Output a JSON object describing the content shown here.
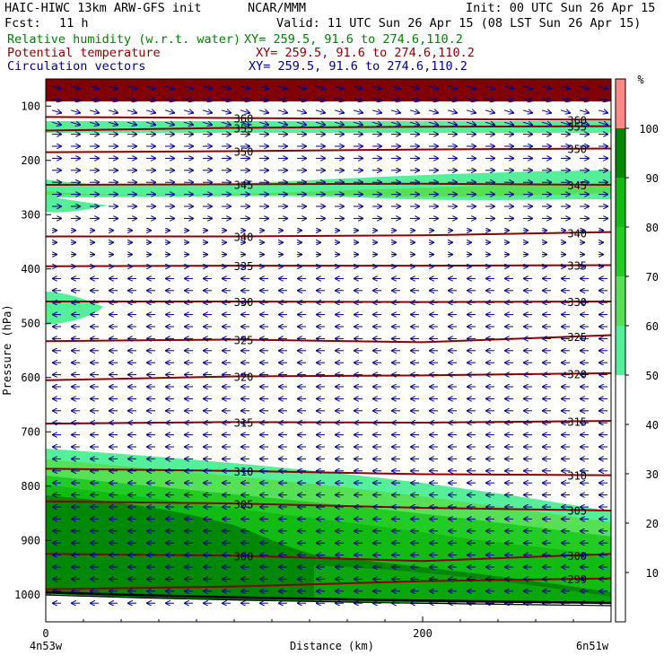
{
  "header": {
    "title": "HAIC-HIWC 13km ARW-GFS init",
    "source": "NCAR/MMM",
    "init": "Init: 00 UTC Sun 26 Apr 15",
    "fcst_label": "Fcst:",
    "fcst_value": "11 h",
    "valid": "Valid: 11 UTC Sun 26 Apr 15 (08 LST Sun 26 Apr 15)",
    "rh_label": "Relative humidity (w.r.t. water)",
    "rh_xy": "XY= 259.5, 91.6 to 274.6,110.2",
    "theta_label": "Potential temperature",
    "theta_xy": "XY= 259.5, 91.6 to 274.6,110.2",
    "vec_label": "Circulation vectors",
    "vec_xy": "XY= 259.5, 91.6 to 274.6,110.2"
  },
  "colors": {
    "rh_field": "#008000",
    "theta_contours": "#8b0000",
    "vectors": "#00008b",
    "top_cap": "#800000"
  },
  "chart_data": {
    "type": "heatmap",
    "xlabel": "Distance (km)",
    "ylabel": "Pressure (hPa)",
    "xlim": [
      0,
      300
    ],
    "ylim": [
      1050,
      50
    ],
    "x_ticks": [
      0,
      200
    ],
    "y_ticks": [
      100,
      200,
      300,
      400,
      500,
      600,
      700,
      800,
      900,
      1000
    ],
    "x_end_labels": {
      "left": "4n53w",
      "right": "6n51w"
    },
    "colorbar": {
      "unit": "%",
      "tick_labels": [
        10,
        20,
        30,
        40,
        50,
        60,
        70,
        80,
        90,
        100
      ],
      "bins": [
        {
          "range": [
            50,
            60
          ],
          "color": "#55ee99"
        },
        {
          "range": [
            60,
            70
          ],
          "color": "#55e055"
        },
        {
          "range": [
            70,
            80
          ],
          "color": "#22cc22"
        },
        {
          "range": [
            80,
            90
          ],
          "color": "#11bb11"
        },
        {
          "range": [
            90,
            100
          ],
          "color": "#008800"
        },
        {
          "range": [
            100,
            110
          ],
          "color": "#ff8888"
        }
      ]
    },
    "theta_contours": [
      {
        "label": "360",
        "pressure": [
          120,
          122,
          124,
          125
        ]
      },
      {
        "label": "355",
        "pressure": [
          145,
          140,
          138,
          137
        ]
      },
      {
        "label": "350",
        "pressure": [
          185,
          183,
          180,
          178
        ]
      },
      {
        "label": "345",
        "pressure": [
          245,
          244,
          243,
          245
        ]
      },
      {
        "label": "340",
        "pressure": [
          340,
          340,
          338,
          332
        ]
      },
      {
        "label": "335",
        "pressure": [
          395,
          394,
          394,
          393
        ]
      },
      {
        "label": "330",
        "pressure": [
          460,
          460,
          461,
          460
        ]
      },
      {
        "label": "325",
        "pressure": [
          533,
          530,
          535,
          522
        ]
      },
      {
        "label": "320",
        "pressure": [
          605,
          598,
          596,
          592
        ]
      },
      {
        "label": "315",
        "pressure": [
          685,
          682,
          683,
          680
        ]
      },
      {
        "label": "310",
        "pressure": [
          768,
          772,
          778,
          780
        ]
      },
      {
        "label": "305",
        "pressure": [
          828,
          832,
          840,
          845
        ]
      },
      {
        "label": "300",
        "pressure": [
          925,
          928,
          938,
          925
        ]
      },
      {
        "label": "299",
        "pressure": [
          990,
          985,
          975,
          970
        ]
      }
    ],
    "contour_labels_shown": [
      "360",
      "355",
      "350",
      "350",
      "345",
      "345",
      "340",
      "340",
      "335",
      "335",
      "330",
      "330",
      "325",
      "325",
      "320",
      "320",
      "315",
      "315",
      "310",
      "310",
      "305",
      "305",
      "300",
      "300",
      "299"
    ]
  }
}
